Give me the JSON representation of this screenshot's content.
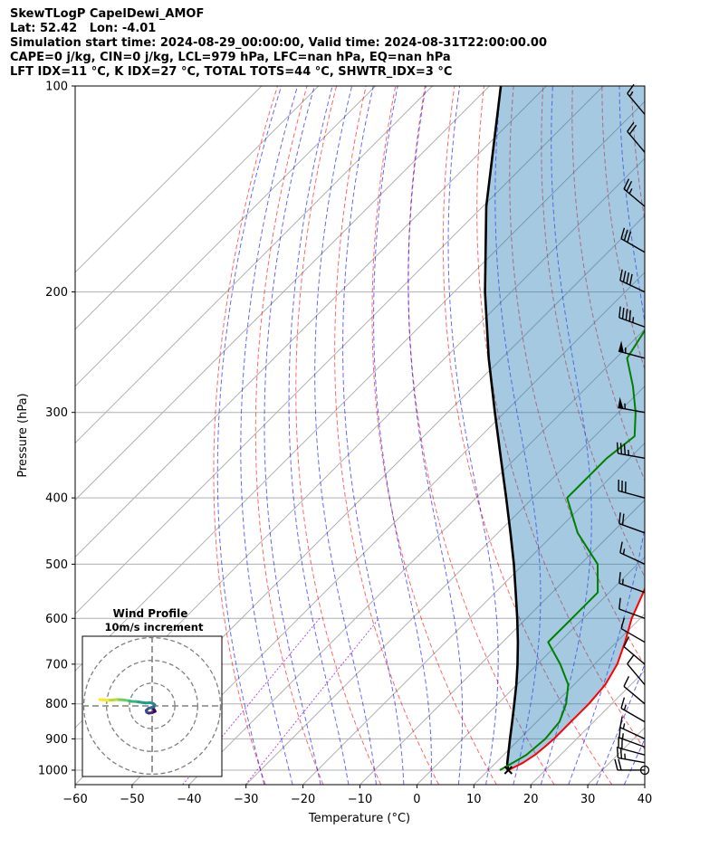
{
  "header": {
    "lines": [
      "SkewTLogP CapelDewi_AMOF",
      "Lat: 52.42   Lon: -4.01",
      "Simulation start time: 2024-08-29_00:00:00, Valid time: 2024-08-31T22:00:00.00",
      "CAPE=0 j/kg, CIN=0 j/kg, LCL=979 hPa, LFC=nan hPa, EQ=nan hPa",
      "LFT IDX=11 °C, K IDX=27 °C, TOTAL TOTS=44 °C, SHWTR_IDX=3 °C"
    ]
  },
  "chart_data": {
    "type": "line",
    "subtype": "skew-T log-P diagram",
    "xlabel": "Temperature (°C)",
    "ylabel": "Pressure (hPa)",
    "xlim": [
      -60,
      40
    ],
    "ylim": [
      1050,
      100
    ],
    "y_scale": "log",
    "skew_degrees": 45,
    "xticks": [
      -60,
      -50,
      -40,
      -30,
      -20,
      -10,
      0,
      10,
      20,
      30,
      40
    ],
    "yticks": [
      1000,
      900,
      800,
      700,
      600,
      500,
      400,
      300,
      200,
      100
    ],
    "grid": true,
    "series": [
      {
        "role": "temperature",
        "color": "#ff0000",
        "points": [
          [
            1000,
            13.5
          ],
          [
            975,
            14.8
          ],
          [
            950,
            15.5
          ],
          [
            925,
            15.8
          ],
          [
            900,
            16
          ],
          [
            850,
            16
          ],
          [
            800,
            16
          ],
          [
            750,
            15.5
          ],
          [
            700,
            14
          ],
          [
            650,
            11.5
          ],
          [
            600,
            8.5
          ],
          [
            550,
            6
          ],
          [
            500,
            3
          ],
          [
            450,
            -0.5
          ],
          [
            400,
            -5
          ],
          [
            350,
            -10.5
          ],
          [
            300,
            -17
          ],
          [
            275,
            -21
          ],
          [
            250,
            -25
          ],
          [
            225,
            -30
          ],
          [
            200,
            -35
          ],
          [
            175,
            -41
          ],
          [
            150,
            -45
          ],
          [
            125,
            -47
          ],
          [
            110,
            -49
          ],
          [
            100,
            -51
          ]
        ]
      },
      {
        "role": "dewpoint",
        "color": "#008000",
        "points": [
          [
            1000,
            12
          ],
          [
            975,
            13
          ],
          [
            950,
            14
          ],
          [
            900,
            14.5
          ],
          [
            850,
            14
          ],
          [
            800,
            12
          ],
          [
            750,
            9
          ],
          [
            700,
            4
          ],
          [
            650,
            -2
          ],
          [
            600,
            -2
          ],
          [
            550,
            -2
          ],
          [
            500,
            -7
          ],
          [
            450,
            -16
          ],
          [
            400,
            -24
          ],
          [
            350,
            -24
          ],
          [
            325,
            -23
          ],
          [
            300,
            -27
          ],
          [
            275,
            -32
          ],
          [
            250,
            -38
          ],
          [
            225,
            -40
          ],
          [
            200,
            -41.5
          ],
          [
            185,
            -40
          ],
          [
            175,
            -45
          ],
          [
            160,
            -54
          ],
          [
            150,
            -57
          ],
          [
            140,
            -55
          ],
          [
            125,
            -54
          ],
          [
            110,
            -55
          ],
          [
            100,
            -56
          ]
        ]
      },
      {
        "role": "parcel",
        "color": "#000000",
        "points": [
          [
            1000,
            13.5
          ],
          [
            979,
            12.2
          ],
          [
            950,
            10.8
          ],
          [
            900,
            8.3
          ],
          [
            850,
            5.7
          ],
          [
            800,
            2.9
          ],
          [
            750,
            -0.1
          ],
          [
            700,
            -3.5
          ],
          [
            650,
            -7.3
          ],
          [
            600,
            -11.6
          ],
          [
            550,
            -16.4
          ],
          [
            500,
            -21.7
          ],
          [
            450,
            -27.8
          ],
          [
            400,
            -34.7
          ],
          [
            350,
            -42.6
          ],
          [
            300,
            -51.7
          ],
          [
            250,
            -62.3
          ],
          [
            200,
            -74.6
          ],
          [
            150,
            -89.4
          ],
          [
            100,
            -108
          ]
        ]
      }
    ],
    "wind_barbs_kt": [
      [
        1000,
        20,
        270
      ],
      [
        975,
        25,
        280
      ],
      [
        950,
        20,
        285
      ],
      [
        925,
        15,
        290
      ],
      [
        900,
        15,
        295
      ],
      [
        850,
        15,
        300
      ],
      [
        800,
        10,
        310
      ],
      [
        750,
        10,
        320
      ],
      [
        700,
        10,
        310
      ],
      [
        650,
        10,
        300
      ],
      [
        600,
        10,
        290
      ],
      [
        550,
        15,
        290
      ],
      [
        500,
        15,
        295
      ],
      [
        450,
        20,
        290
      ],
      [
        400,
        30,
        285
      ],
      [
        350,
        35,
        280
      ],
      [
        300,
        55,
        280
      ],
      [
        250,
        55,
        285
      ],
      [
        225,
        45,
        290
      ],
      [
        200,
        40,
        295
      ],
      [
        175,
        30,
        300
      ],
      [
        150,
        25,
        310
      ],
      [
        125,
        20,
        320
      ],
      [
        110,
        15,
        320
      ]
    ],
    "hodograph": {
      "title": "Wind Profile",
      "subtitle": "10m/s increment",
      "max_speed_ms": 30,
      "ring_step_ms": 10,
      "points": [
        [
          0.5,
          -1.2
        ],
        [
          1,
          -1.8
        ],
        [
          1.3,
          -2.4
        ],
        [
          0,
          -3
        ],
        [
          -1.5,
          -3.2
        ],
        [
          -2.4,
          -2.8
        ],
        [
          -2.6,
          -2
        ],
        [
          -1.5,
          -1
        ],
        [
          0.8,
          -0.4
        ],
        [
          1.2,
          0.4
        ],
        [
          0.5,
          1
        ],
        [
          -1,
          1.4
        ],
        [
          -3,
          1.3
        ],
        [
          -5,
          1.6
        ],
        [
          -7,
          1.9
        ],
        [
          -9,
          2
        ],
        [
          -11,
          2.4
        ],
        [
          -13,
          2.7
        ],
        [
          -15.5,
          2.8
        ],
        [
          -17.5,
          2.6
        ],
        [
          -19.5,
          2.5
        ],
        [
          -21.5,
          2.7
        ],
        [
          -23,
          2.8
        ]
      ]
    }
  }
}
